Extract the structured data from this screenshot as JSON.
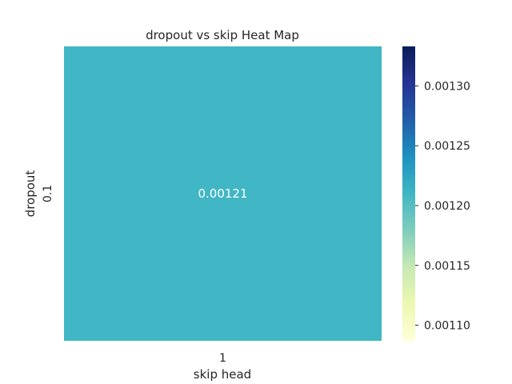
{
  "chart_data": {
    "type": "heatmap",
    "title": "dropout vs skip Heat Map",
    "xlabel": "skip head",
    "ylabel": "dropout",
    "x_categories": [
      "1"
    ],
    "y_categories": [
      "0.1"
    ],
    "values": [
      [
        0.00121
      ]
    ],
    "cell_labels": [
      [
        "0.00121"
      ]
    ],
    "colorbar": {
      "colormap": "YlGnBu",
      "range": [
        0.001087,
        0.001333
      ],
      "ticks": [
        0.0011,
        0.00115,
        0.0012,
        0.00125,
        0.0013
      ],
      "tick_labels": [
        "0.00110",
        "0.00115",
        "0.00120",
        "0.00125",
        "0.00130"
      ]
    }
  }
}
